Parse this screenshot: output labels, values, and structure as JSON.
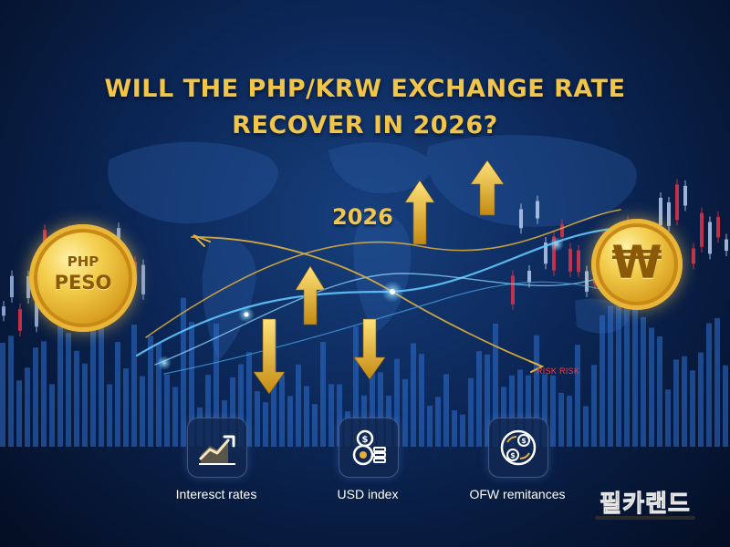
{
  "title": {
    "line1": "WILL THE PHP/KRW EXCHANGE RATE",
    "line2": "RECOVER IN 2026?"
  },
  "year_label": "2026",
  "coins": {
    "left": {
      "line1": "PHP",
      "line2": "PESO"
    },
    "right": {
      "symbol": "₩"
    }
  },
  "risk_label": "RISK RISK",
  "factors": [
    {
      "label": "Interesct rates",
      "icon": "rising-chart-icon"
    },
    {
      "label": "USD index",
      "icon": "coins-dollar-icon"
    },
    {
      "label": "OFW remitances",
      "icon": "money-transfer-icon"
    }
  ],
  "watermark": "필카랜드",
  "colors": {
    "title_gold": "#f1c44a",
    "background_navy": "#0b2656",
    "risk_red": "#ff3b3b",
    "glow_blue": "#5fc8ff"
  }
}
